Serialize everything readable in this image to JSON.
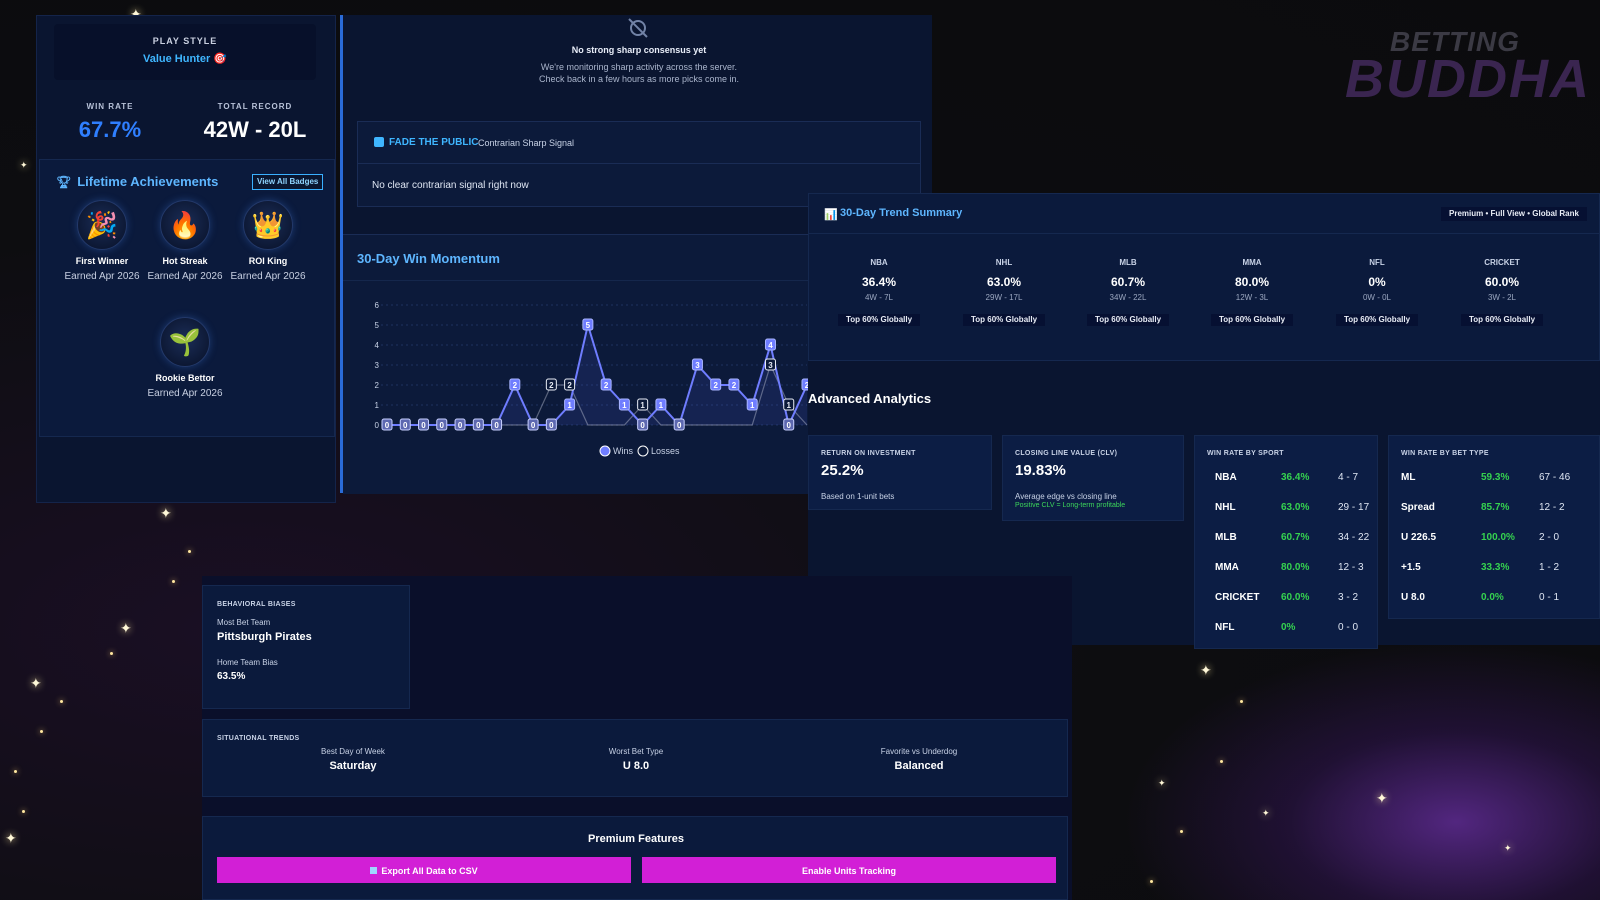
{
  "brand": {
    "line1": "BETTING",
    "line2": "BUDDHA"
  },
  "profile": {
    "play_style_label": "PLAY STYLE",
    "play_style_value": "Value Hunter 🎯",
    "win_rate_label": "WIN RATE",
    "win_rate_value": "67.7%",
    "record_label": "TOTAL RECORD",
    "record_value": "42W - 20L"
  },
  "achievements": {
    "title": "Lifetime Achievements",
    "view_all": "View All Badges",
    "badges": [
      {
        "name": "First Winner",
        "earned": "Earned Apr 2026",
        "icon": "🎉"
      },
      {
        "name": "Hot Streak",
        "earned": "Earned Apr 2026",
        "icon": "🔥"
      },
      {
        "name": "ROI King",
        "earned": "Earned Apr 2026",
        "icon": "👑"
      },
      {
        "name": "Rookie Bettor",
        "earned": "Earned Apr 2026",
        "icon": "🌱"
      }
    ]
  },
  "consensus": {
    "title": "No strong sharp consensus yet",
    "line1": "We're monitoring sharp activity across the server.",
    "line2": "Check back in a few hours as more picks come in."
  },
  "fade": {
    "title": "FADE THE PUBLIC",
    "subtitle": "Contrarian Sharp Signal",
    "body": "No clear contrarian signal right now"
  },
  "momentum": {
    "title": "30-Day Win Momentum",
    "legend_wins": "Wins",
    "legend_losses": "Losses"
  },
  "chart_data": {
    "type": "line",
    "title": "30-Day Win Momentum",
    "ylim": [
      0,
      6
    ],
    "yticks": [
      0,
      1,
      2,
      3,
      4,
      5,
      6
    ],
    "series": [
      {
        "name": "Wins",
        "color": "#6f7dff",
        "values": [
          0,
          0,
          0,
          0,
          0,
          0,
          0,
          2,
          0,
          0,
          1,
          5,
          2,
          1,
          0,
          1,
          0,
          3,
          2,
          2,
          1,
          4,
          0,
          2
        ]
      },
      {
        "name": "Losses",
        "color": "#e8ecf5",
        "values": [
          0,
          0,
          0,
          0,
          0,
          0,
          0,
          0,
          0,
          2,
          2,
          0,
          0,
          0,
          1,
          0,
          0,
          0,
          0,
          0,
          0,
          3,
          1,
          0
        ]
      }
    ],
    "grid": true,
    "legend": "bottom"
  },
  "trend": {
    "title": "30-Day Trend Summary",
    "pill": "Premium • Full View • Global Rank",
    "sports": [
      {
        "name": "NBA",
        "pct": "36.4%",
        "record": "4W - 7L",
        "rank": "Top 60% Globally"
      },
      {
        "name": "NHL",
        "pct": "63.0%",
        "record": "29W - 17L",
        "rank": "Top 60% Globally"
      },
      {
        "name": "MLB",
        "pct": "60.7%",
        "record": "34W - 22L",
        "rank": "Top 60% Globally"
      },
      {
        "name": "MMA",
        "pct": "80.0%",
        "record": "12W - 3L",
        "rank": "Top 60% Globally"
      },
      {
        "name": "NFL",
        "pct": "0%",
        "record": "0W - 0L",
        "rank": "Top 60% Globally"
      },
      {
        "name": "CRICKET",
        "pct": "60.0%",
        "record": "3W - 2L",
        "rank": "Top 60% Globally"
      }
    ]
  },
  "advanced": {
    "title": "Advanced Analytics",
    "roi_label": "RETURN ON INVESTMENT",
    "roi_value": "25.2%",
    "roi_note": "Based on 1-unit bets",
    "clv_label": "CLOSING LINE VALUE (CLV)",
    "clv_value": "19.83%",
    "clv_note": "Average edge vs closing line",
    "clv_note2": "Positive CLV = Long-term profitable",
    "by_sport_label": "WIN RATE BY SPORT",
    "by_sport": [
      {
        "name": "NBA",
        "pct": "36.4%",
        "record": "4 - 7"
      },
      {
        "name": "NHL",
        "pct": "63.0%",
        "record": "29 - 17"
      },
      {
        "name": "MLB",
        "pct": "60.7%",
        "record": "34 - 22"
      },
      {
        "name": "MMA",
        "pct": "80.0%",
        "record": "12 - 3"
      },
      {
        "name": "CRICKET",
        "pct": "60.0%",
        "record": "3 - 2"
      },
      {
        "name": "NFL",
        "pct": "0%",
        "record": "0 - 0"
      }
    ],
    "by_type_label": "WIN RATE BY BET TYPE",
    "by_type": [
      {
        "name": "ML",
        "pct": "59.3%",
        "record": "67 - 46"
      },
      {
        "name": "Spread",
        "pct": "85.7%",
        "record": "12 - 2"
      },
      {
        "name": "U 226.5",
        "pct": "100.0%",
        "record": "2 - 0"
      },
      {
        "name": "+1.5",
        "pct": "33.3%",
        "record": "1 - 2"
      },
      {
        "name": "U 8.0",
        "pct": "0.0%",
        "record": "0 - 1"
      }
    ]
  },
  "biases": {
    "title": "BEHAVIORAL BIASES",
    "most_team_label": "Most Bet Team",
    "most_team_value": "Pittsburgh Pirates",
    "home_bias_label": "Home Team Bias",
    "home_bias_value": "63.5%"
  },
  "situational": {
    "title": "SITUATIONAL TRENDS",
    "best_day_label": "Best Day of Week",
    "best_day_value": "Saturday",
    "worst_type_label": "Worst Bet Type",
    "worst_type_value": "U 8.0",
    "fav_label": "Favorite vs Underdog",
    "fav_value": "Balanced"
  },
  "premium": {
    "title": "Premium Features",
    "export_label": "Export All Data to CSV",
    "units_label": "Enable Units Tracking"
  }
}
